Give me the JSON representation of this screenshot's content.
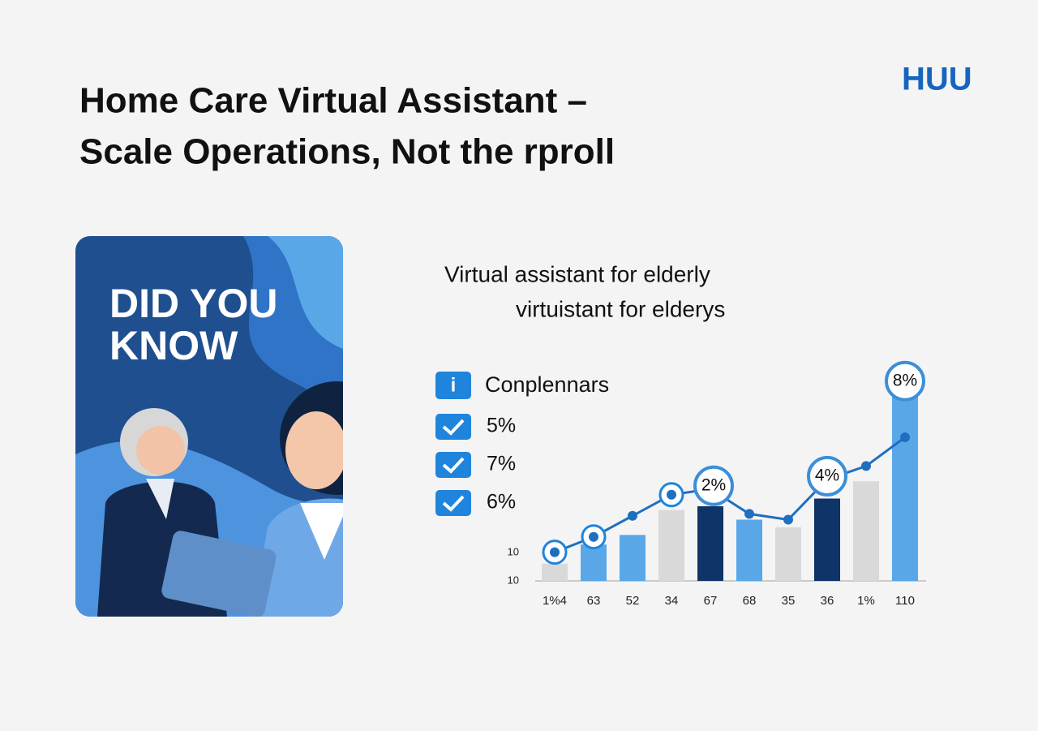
{
  "header": {
    "title_lines": [
      "Home Care Virtual Assistant –",
      "Scale Operations, Not the rproll"
    ],
    "logo": "HUU"
  },
  "card": {
    "heading_lines": [
      "DID YOU",
      "KNOW"
    ]
  },
  "chart_data": {
    "type": "bar",
    "title": "Virtual assistant for elderly",
    "subtitle": "virtuistant for elderys",
    "legend": {
      "heading": "Conplennars",
      "items": [
        "5%",
        "7%",
        "6%"
      ]
    },
    "side_labels": [
      "10",
      "10"
    ],
    "categories": [
      "1%4",
      "63",
      "52",
      "34",
      "67",
      "68",
      "35",
      "36",
      "1%",
      "110"
    ],
    "values": [
      9,
      19,
      24,
      37,
      39,
      32,
      28,
      43,
      52,
      98
    ],
    "colors": [
      "#d9d9d9",
      "#5aa7e8",
      "#5aa7e8",
      "#d9d9d9",
      "#0f3467",
      "#5aa7e8",
      "#d9d9d9",
      "#0f3467",
      "#d9d9d9",
      "#5aa7e8"
    ],
    "ylim": [
      0,
      100
    ],
    "line": {
      "color": "#1f6fbf",
      "values": [
        15,
        23,
        34,
        45,
        48,
        35,
        32,
        53,
        60,
        75
      ]
    },
    "callouts": [
      {
        "index": 4,
        "label": "2%"
      },
      {
        "index": 7,
        "label": "4%"
      },
      {
        "index": 9,
        "label": "8%"
      }
    ]
  }
}
